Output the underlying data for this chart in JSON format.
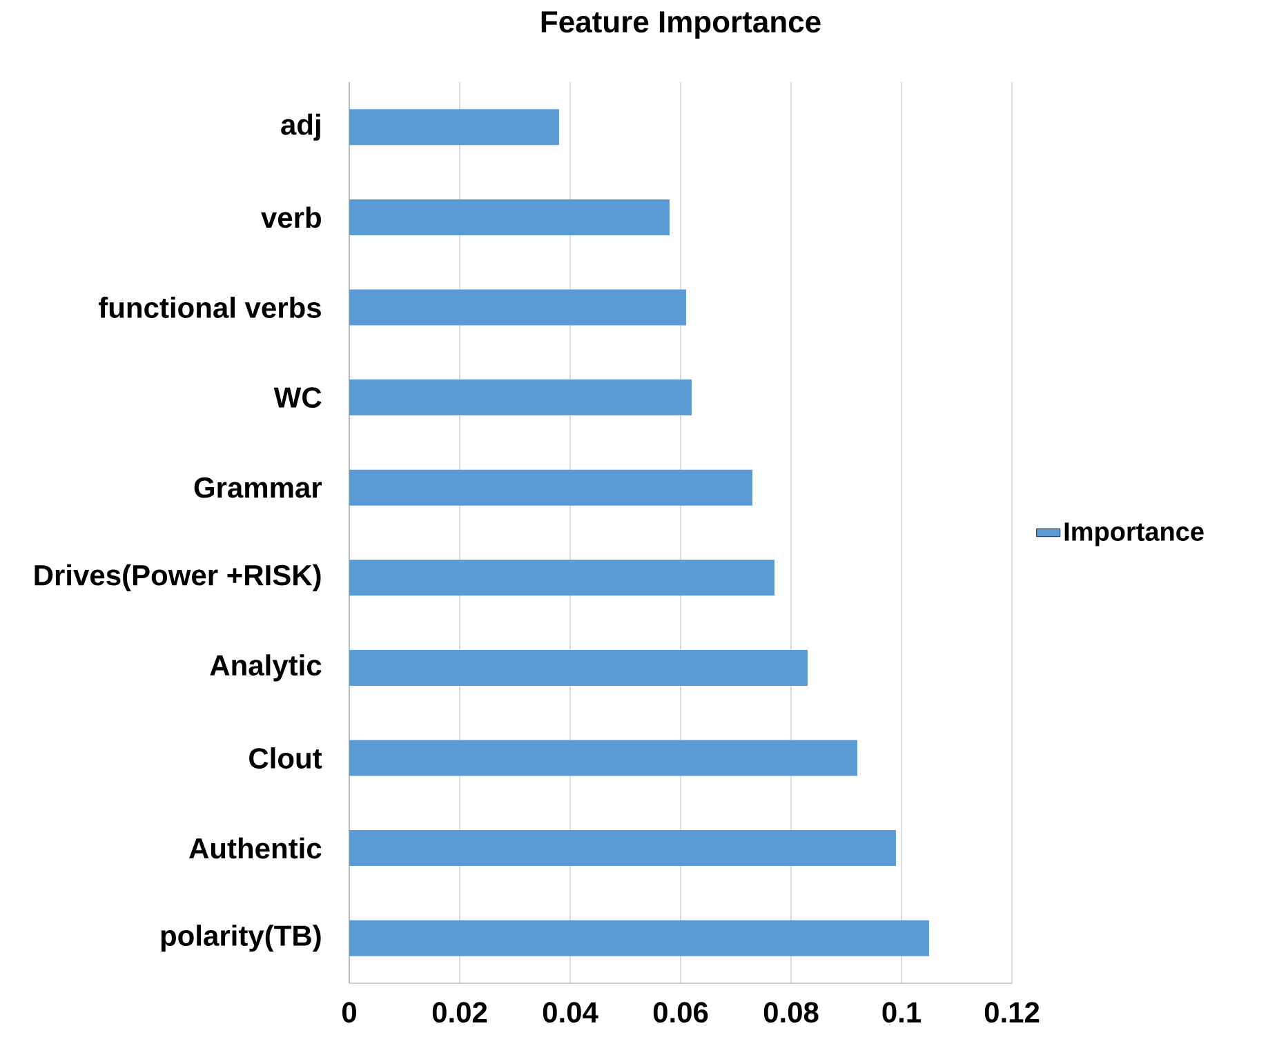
{
  "chart_data": {
    "type": "bar",
    "orientation": "horizontal",
    "title": "Feature Importance",
    "categories": [
      "adj",
      "verb",
      "functional verbs",
      "WC",
      "Grammar",
      "Drives(Power +RISK)",
      "Analytic",
      "Clout",
      "Authentic",
      "polarity(TB)"
    ],
    "series": [
      {
        "name": "Importance",
        "color": "#5b9bd5",
        "values": [
          0.038,
          0.058,
          0.061,
          0.062,
          0.073,
          0.077,
          0.083,
          0.092,
          0.099,
          0.105
        ]
      }
    ],
    "xlim": [
      0,
      0.12
    ],
    "xticks": [
      0,
      0.02,
      0.04,
      0.06,
      0.08,
      0.1,
      0.12
    ],
    "grid": "x",
    "legend": "right"
  }
}
